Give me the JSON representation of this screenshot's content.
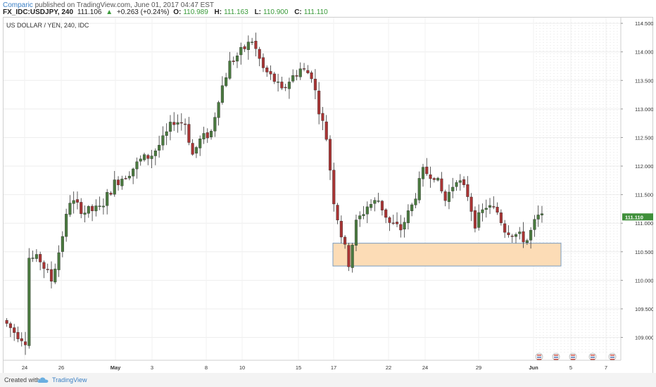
{
  "header": {
    "author": "Comparic",
    "published_text": "published on TradingView.com, June 01, 2017 04:47 EST",
    "symbol": "FX_IDC:USDJPY, 240",
    "last": "111.106",
    "change_arrow": "▲",
    "change": "+0.263 (+0.24%)",
    "open_label": "O:",
    "open": "110.989",
    "high_label": "H:",
    "high": "111.163",
    "low_label": "L:",
    "low": "110.900",
    "close_label": "C:",
    "close": "111.110"
  },
  "footer": {
    "created_with": "Created with",
    "brand": "TradingView",
    "logo_icon": "cloud-icon"
  },
  "chart_data": {
    "type": "candlestick",
    "title": "US DOLLAR / YEN, 240, IDC",
    "ylim": [
      108.6,
      114.6
    ],
    "y_ticks": [
      109.0,
      109.5,
      110.0,
      110.5,
      111.0,
      111.5,
      112.0,
      112.5,
      113.0,
      113.5,
      114.0,
      114.5
    ],
    "y_tick_labels": [
      "109.000",
      "109.500",
      "110.000",
      "110.500",
      "111.000",
      "111.500",
      "112.000",
      "112.500",
      "113.000",
      "113.500",
      "114.000",
      "114.500"
    ],
    "x_tick_labels": [
      "24",
      "26",
      "May",
      "3",
      "8",
      "10",
      "15",
      "17",
      "22",
      "24",
      "29",
      "Jun",
      "5",
      "7"
    ],
    "last_price_label": "111.110",
    "colors": {
      "up": "#4a7a3f",
      "down": "#a93434",
      "zone_fill": "#fcdcb6",
      "zone_stroke": "#7a9bbf",
      "last_badge": "#3f8f3a"
    },
    "support_zone": {
      "y_low": 110.25,
      "y_high": 110.65
    },
    "waypoints": [
      [
        0,
        109.3
      ],
      [
        3,
        109.1
      ],
      [
        6,
        108.95
      ],
      [
        7,
        110.4
      ],
      [
        10,
        110.35
      ],
      [
        13,
        110.0
      ],
      [
        15,
        110.5
      ],
      [
        18,
        111.4
      ],
      [
        22,
        111.2
      ],
      [
        26,
        111.25
      ],
      [
        30,
        111.7
      ],
      [
        34,
        111.9
      ],
      [
        37,
        112.1
      ],
      [
        40,
        112.2
      ],
      [
        43,
        112.45
      ],
      [
        46,
        112.8
      ],
      [
        49,
        112.75
      ],
      [
        51,
        112.2
      ],
      [
        53,
        112.45
      ],
      [
        56,
        112.6
      ],
      [
        58,
        113.2
      ],
      [
        61,
        113.8
      ],
      [
        64,
        114.0
      ],
      [
        67,
        114.2
      ],
      [
        70,
        113.7
      ],
      [
        73,
        113.5
      ],
      [
        75,
        113.3
      ],
      [
        77,
        113.5
      ],
      [
        80,
        113.7
      ],
      [
        83,
        113.6
      ],
      [
        85,
        113.0
      ],
      [
        87,
        112.5
      ],
      [
        89,
        111.4
      ],
      [
        91,
        110.8
      ],
      [
        93,
        110.3
      ],
      [
        95,
        111.0
      ],
      [
        98,
        111.3
      ],
      [
        101,
        111.4
      ],
      [
        104,
        111.0
      ],
      [
        107,
        110.9
      ],
      [
        110,
        111.3
      ],
      [
        113,
        111.9
      ],
      [
        116,
        111.85
      ],
      [
        119,
        111.4
      ],
      [
        122,
        111.8
      ],
      [
        125,
        111.5
      ],
      [
        127,
        111.0
      ],
      [
        130,
        111.3
      ],
      [
        133,
        111.2
      ],
      [
        135,
        110.9
      ],
      [
        138,
        110.8
      ],
      [
        141,
        110.7
      ],
      [
        143,
        111.0
      ],
      [
        144,
        111.1
      ]
    ],
    "bar_count": 145
  },
  "calendar_icons": [
    "flag-icon",
    "flag-icon",
    "flag-icon",
    "flag-icon",
    "flag-icon"
  ]
}
